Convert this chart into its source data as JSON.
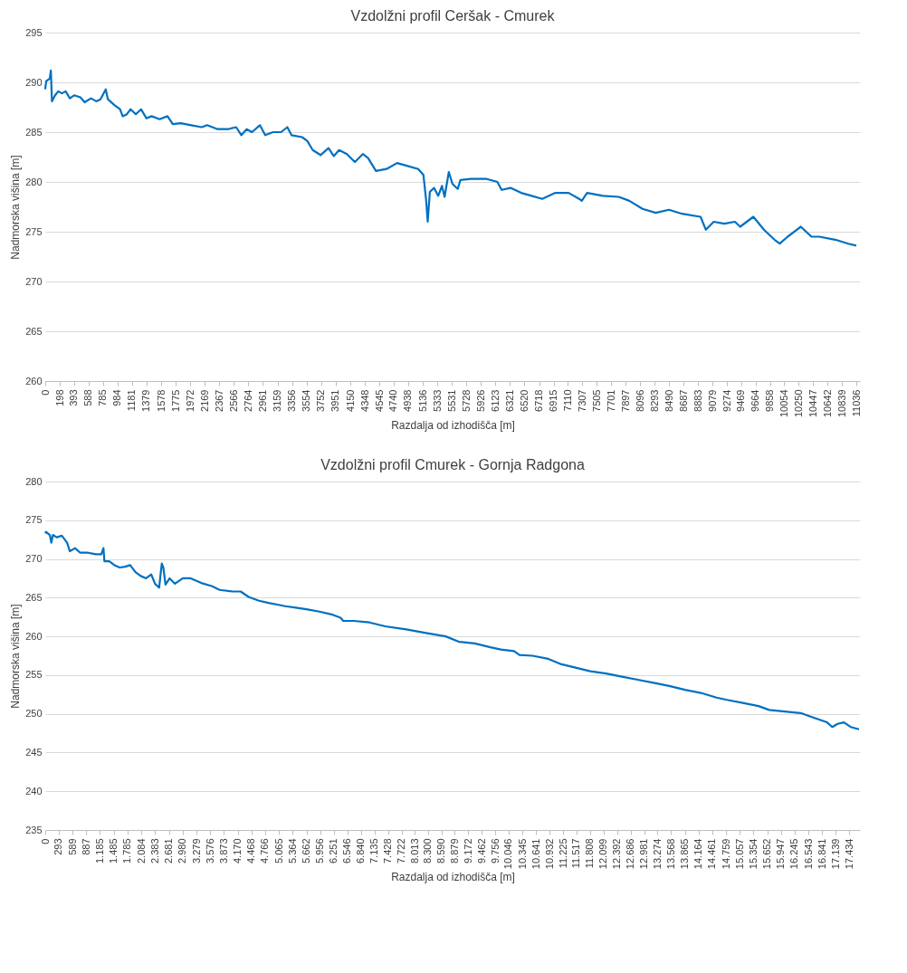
{
  "chart_data": [
    {
      "type": "line",
      "title": "Vzdolžni profil  Ceršak - Cmurek",
      "xlabel": "Razdalja od izhodišča [m]",
      "ylabel": "Nadmorska višina [m]",
      "grid": "y",
      "marker": "none",
      "line_style": "solid",
      "xlim": [
        0,
        11083
      ],
      "ylim": [
        260,
        295
      ],
      "yticks": [
        260,
        265,
        270,
        275,
        280,
        285,
        290,
        295
      ],
      "xticks": [
        0,
        198,
        393,
        588,
        785,
        984,
        1181,
        1379,
        1578,
        1775,
        1972,
        2169,
        2367,
        2566,
        2764,
        2961,
        3159,
        3356,
        3554,
        3752,
        3951,
        4150,
        4348,
        4545,
        4740,
        4938,
        5136,
        5333,
        5531,
        5728,
        5926,
        6123,
        6321,
        6520,
        6718,
        6915,
        7110,
        7307,
        7505,
        7701,
        7897,
        8096,
        8293,
        8490,
        8687,
        8883,
        9079,
        9274,
        9469,
        9664,
        9858,
        10054,
        10250,
        10447,
        10642,
        10839,
        11036
      ],
      "x": [
        0,
        12,
        62,
        76,
        91,
        134,
        177,
        227,
        277,
        335,
        392,
        478,
        536,
        622,
        694,
        751,
        823,
        852,
        945,
        1017,
        1053,
        1110,
        1161,
        1232,
        1304,
        1376,
        1448,
        1555,
        1663,
        1735,
        1843,
        1986,
        2130,
        2202,
        2345,
        2489,
        2597,
        2668,
        2740,
        2812,
        2920,
        2992,
        3099,
        3207,
        3293,
        3350,
        3494,
        3566,
        3638,
        3745,
        3853,
        3925,
        3997,
        4104,
        4212,
        4320,
        4392,
        4499,
        4643,
        4786,
        4930,
        5074,
        5145,
        5181,
        5203,
        5232,
        5289,
        5346,
        5397,
        5433,
        5490,
        5540,
        5612,
        5648,
        5792,
        6007,
        6151,
        6208,
        6330,
        6474,
        6617,
        6761,
        6940,
        7120,
        7263,
        7299,
        7371,
        7587,
        7802,
        7946,
        8125,
        8305,
        8485,
        8664,
        8915,
        8987,
        9094,
        9238,
        9382,
        9454,
        9633,
        9777,
        9920,
        9992,
        10100,
        10279,
        10423,
        10530,
        10746,
        10925,
        11033
      ],
      "series": [
        {
          "color": "#0070c0",
          "values": [
            289.3,
            290.1,
            290.4,
            291.2,
            288.1,
            288.7,
            289.1,
            288.9,
            289.1,
            288.4,
            288.7,
            288.5,
            288.0,
            288.4,
            288.1,
            288.3,
            289.3,
            288.3,
            287.7,
            287.3,
            286.6,
            286.8,
            287.3,
            286.8,
            287.3,
            286.4,
            286.6,
            286.3,
            286.6,
            285.8,
            285.9,
            285.7,
            285.5,
            285.7,
            285.3,
            285.3,
            285.5,
            284.7,
            285.3,
            285.0,
            285.7,
            284.7,
            285.0,
            285.0,
            285.5,
            284.7,
            284.5,
            284.1,
            283.2,
            282.7,
            283.4,
            282.6,
            283.2,
            282.8,
            282.0,
            282.8,
            282.4,
            281.1,
            281.3,
            281.9,
            281.6,
            281.3,
            280.7,
            278.2,
            276.0,
            279.0,
            279.4,
            278.6,
            279.6,
            278.5,
            281.0,
            279.8,
            279.3,
            280.2,
            280.3,
            280.3,
            280.0,
            279.2,
            279.4,
            278.9,
            278.6,
            278.3,
            278.9,
            278.9,
            278.3,
            278.1,
            278.9,
            278.6,
            278.5,
            278.1,
            277.3,
            276.9,
            277.2,
            276.8,
            276.5,
            275.2,
            276.0,
            275.8,
            276.0,
            275.5,
            276.5,
            275.2,
            274.2,
            273.8,
            274.5,
            275.5,
            274.5,
            274.5,
            274.2,
            273.8,
            273.6
          ]
        }
      ]
    },
    {
      "type": "line",
      "title": "Vzdolžni profil Cmurek - Gornja Radgona",
      "xlabel": "Razdalja od izhodišča [m]",
      "ylabel": "Nadmorska višina [m]",
      "grid": "y",
      "marker": "none",
      "line_style": "solid",
      "xlim": [
        0,
        17660
      ],
      "ylim": [
        235,
        280
      ],
      "yticks": [
        235,
        240,
        245,
        250,
        255,
        260,
        265,
        270,
        275,
        280
      ],
      "xticks": [
        0,
        293,
        589,
        887,
        {
          "value": 1185,
          "label": "1.185"
        },
        {
          "value": 1485,
          "label": "1.485"
        },
        {
          "value": 1785,
          "label": "1.785"
        },
        {
          "value": 2084,
          "label": "2.084"
        },
        {
          "value": 2383,
          "label": "2.383"
        },
        {
          "value": 2681,
          "label": "2.681"
        },
        {
          "value": 2980,
          "label": "2.980"
        },
        {
          "value": 3279,
          "label": "3.279"
        },
        {
          "value": 3576,
          "label": "3.576"
        },
        {
          "value": 3873,
          "label": "3.873"
        },
        {
          "value": 4170,
          "label": "4.170"
        },
        {
          "value": 4468,
          "label": "4.468"
        },
        {
          "value": 4766,
          "label": "4.766"
        },
        {
          "value": 5065,
          "label": "5.065"
        },
        {
          "value": 5364,
          "label": "5.364"
        },
        {
          "value": 5662,
          "label": "5.662"
        },
        {
          "value": 5956,
          "label": "5.956"
        },
        {
          "value": 6251,
          "label": "6.251"
        },
        {
          "value": 6546,
          "label": "6.546"
        },
        {
          "value": 6840,
          "label": "6.840"
        },
        {
          "value": 7135,
          "label": "7.135"
        },
        {
          "value": 7428,
          "label": "7.428"
        },
        {
          "value": 7722,
          "label": "7.722"
        },
        {
          "value": 8013,
          "label": "8.013"
        },
        {
          "value": 8300,
          "label": "8.300"
        },
        {
          "value": 8590,
          "label": "8.590"
        },
        {
          "value": 8879,
          "label": "8.879"
        },
        {
          "value": 9172,
          "label": "9.172"
        },
        {
          "value": 9462,
          "label": "9.462"
        },
        {
          "value": 9756,
          "label": "9.756"
        },
        {
          "value": 10046,
          "label": "10.046"
        },
        {
          "value": 10345,
          "label": "10.345"
        },
        {
          "value": 10641,
          "label": "10.641"
        },
        {
          "value": 10932,
          "label": "10.932"
        },
        {
          "value": 11225,
          "label": "11.225"
        },
        {
          "value": 11517,
          "label": "11.517"
        },
        {
          "value": 11808,
          "label": "11.808"
        },
        {
          "value": 12099,
          "label": "12.099"
        },
        {
          "value": 12392,
          "label": "12.392"
        },
        {
          "value": 12686,
          "label": "12.686"
        },
        {
          "value": 12981,
          "label": "12.981"
        },
        {
          "value": 13274,
          "label": "13.274"
        },
        {
          "value": 13568,
          "label": "13.568"
        },
        {
          "value": 13865,
          "label": "13.865"
        },
        {
          "value": 14164,
          "label": "14.164"
        },
        {
          "value": 14461,
          "label": "14.461"
        },
        {
          "value": 14759,
          "label": "14.759"
        },
        {
          "value": 15057,
          "label": "15.057"
        },
        {
          "value": 15354,
          "label": "15.354"
        },
        {
          "value": 15652,
          "label": "15.652"
        },
        {
          "value": 15947,
          "label": "15.947"
        },
        {
          "value": 16245,
          "label": "16.245"
        },
        {
          "value": 16543,
          "label": "16.543"
        },
        {
          "value": 16841,
          "label": "16.841"
        },
        {
          "value": 17139,
          "label": "17.139"
        },
        {
          "value": 17434,
          "label": "17.434"
        }
      ],
      "x": [
        0,
        18,
        98,
        132,
        166,
        246,
        360,
        474,
        531,
        645,
        759,
        930,
        1101,
        1215,
        1261,
        1283,
        1386,
        1500,
        1614,
        1728,
        1842,
        1956,
        2070,
        2184,
        2298,
        2378,
        2469,
        2526,
        2560,
        2606,
        2697,
        2811,
        2982,
        3153,
        3381,
        3609,
        3780,
        4065,
        4236,
        4407,
        4635,
        4863,
        5034,
        5205,
        5433,
        5661,
        5946,
        6231,
        6402,
        6459,
        6687,
        7029,
        7371,
        7827,
        8283,
        8682,
        8967,
        9309,
        9651,
        9879,
        10164,
        10278,
        10563,
        10905,
        11190,
        11475,
        11817,
        12159,
        12501,
        12843,
        13185,
        13527,
        13869,
        14211,
        14553,
        14781,
        15123,
        15465,
        15693,
        16035,
        16377,
        16605,
        16947,
        17061,
        17175,
        17312,
        17460,
        17640
      ],
      "series": [
        {
          "color": "#0070c0",
          "values": [
            273.3,
            273.5,
            273.1,
            272.1,
            273.1,
            272.8,
            273.0,
            272.1,
            271.0,
            271.4,
            270.8,
            270.8,
            270.6,
            270.6,
            271.4,
            269.7,
            269.7,
            269.2,
            268.9,
            269.0,
            269.2,
            268.3,
            267.8,
            267.5,
            268.0,
            266.8,
            266.3,
            269.4,
            268.9,
            266.7,
            267.5,
            266.8,
            267.5,
            267.5,
            266.9,
            266.5,
            266.0,
            265.8,
            265.8,
            265.1,
            264.6,
            264.3,
            264.1,
            263.9,
            263.7,
            263.5,
            263.2,
            262.8,
            262.4,
            262.0,
            262.0,
            261.8,
            261.3,
            260.9,
            260.4,
            260.0,
            259.3,
            259.1,
            258.6,
            258.3,
            258.1,
            257.6,
            257.5,
            257.1,
            256.4,
            256.0,
            255.5,
            255.2,
            254.8,
            254.4,
            254.0,
            253.6,
            253.1,
            252.7,
            252.1,
            251.8,
            251.4,
            251.0,
            250.5,
            250.3,
            250.1,
            249.6,
            248.9,
            248.3,
            248.7,
            248.9,
            248.3,
            248.0
          ]
        }
      ]
    }
  ]
}
